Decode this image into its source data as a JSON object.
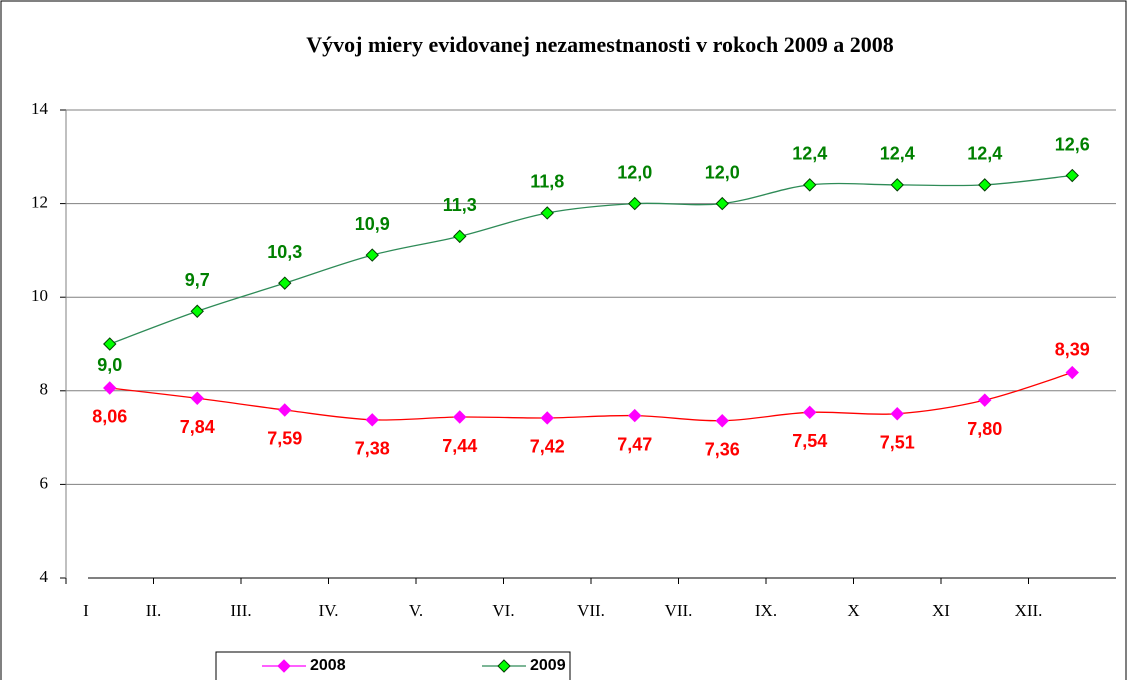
{
  "chart_data": {
    "type": "line",
    "title": "Vývoj miery evidovanej nezamestnanosti v rokoch 2009 a 2008",
    "categories": [
      "I",
      "II.",
      "III.",
      "IV.",
      "V.",
      "VI.",
      "VII.",
      "VII.",
      "IX.",
      "X",
      "XI",
      "XII."
    ],
    "ylim": [
      4,
      14
    ],
    "yticks": [
      4,
      6,
      8,
      10,
      12,
      14
    ],
    "grid": true,
    "legend": "bottom",
    "series": [
      {
        "name": "2008",
        "color": "#ff0000",
        "marker_color": "#ff00ff",
        "values": [
          8.06,
          7.84,
          7.59,
          7.38,
          7.44,
          7.42,
          7.47,
          7.36,
          7.54,
          7.51,
          7.8,
          8.39
        ],
        "value_labels": [
          "8,06",
          "7,84",
          "7,59",
          "7,38",
          "7,44",
          "7,42",
          "7,47",
          "7,36",
          "7,54",
          "7,51",
          "7,80",
          "8,39"
        ]
      },
      {
        "name": "2009",
        "color": "#2e8b57",
        "marker_color": "#00ff00",
        "values": [
          9.0,
          9.7,
          10.3,
          10.9,
          11.3,
          11.8,
          12.0,
          12.0,
          12.4,
          12.4,
          12.4,
          12.6
        ],
        "value_labels": [
          "9,0",
          "9,7",
          "10,3",
          "10,9",
          "11,3",
          "11,8",
          "12,0",
          "12,0",
          "12,4",
          "12,4",
          "12,4",
          "12,6"
        ]
      }
    ]
  }
}
